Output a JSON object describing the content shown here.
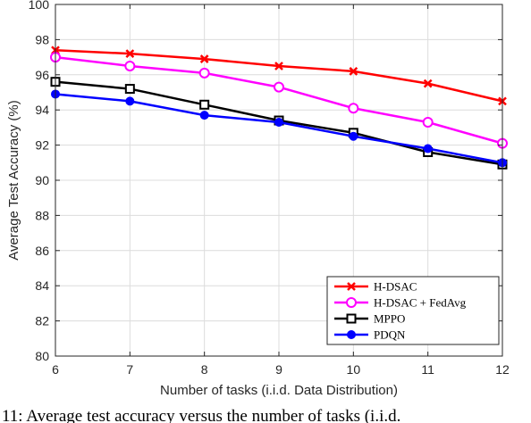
{
  "chart_data": {
    "type": "line",
    "title": "",
    "xlabel": "Number of tasks (i.i.d. Data Distribution)",
    "ylabel": "Average Test Accuracy (%)",
    "x": [
      6,
      7,
      8,
      9,
      10,
      11,
      12
    ],
    "xlim": [
      6,
      12
    ],
    "ylim": [
      80,
      100
    ],
    "xticks": [
      6,
      7,
      8,
      9,
      10,
      11,
      12
    ],
    "yticks": [
      80,
      82,
      84,
      86,
      88,
      90,
      92,
      94,
      96,
      98,
      100
    ],
    "grid": true,
    "legend_position": "bottom-right",
    "series": [
      {
        "name": "H-DSAC",
        "values": [
          97.4,
          97.2,
          96.9,
          96.5,
          96.2,
          95.5,
          94.5
        ],
        "color": "#ff0000",
        "marker": "x"
      },
      {
        "name": "H-DSAC + FedAvg",
        "values": [
          97.0,
          96.5,
          96.1,
          95.3,
          94.1,
          93.3,
          92.1
        ],
        "color": "#ff00ff",
        "marker": "circle"
      },
      {
        "name": "MPPO",
        "values": [
          95.6,
          95.2,
          94.3,
          93.4,
          92.7,
          91.6,
          90.9
        ],
        "color": "#000000",
        "marker": "square"
      },
      {
        "name": "PDQN",
        "values": [
          94.9,
          94.5,
          93.7,
          93.3,
          92.5,
          91.8,
          91.0
        ],
        "color": "#0000ff",
        "marker": "dot"
      }
    ]
  },
  "caption": {
    "text": "11: Average test accuracy versus the number of tasks (i.i.d."
  }
}
